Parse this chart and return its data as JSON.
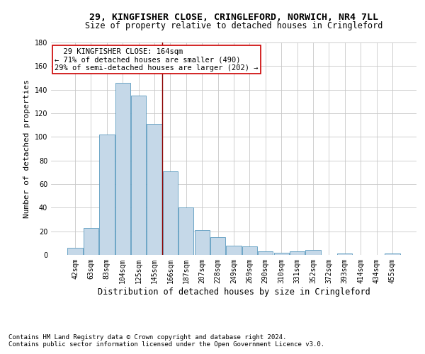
{
  "title1": "29, KINGFISHER CLOSE, CRINGLEFORD, NORWICH, NR4 7LL",
  "title2": "Size of property relative to detached houses in Cringleford",
  "xlabel": "Distribution of detached houses by size in Cringleford",
  "ylabel": "Number of detached properties",
  "categories": [
    "42sqm",
    "63sqm",
    "83sqm",
    "104sqm",
    "125sqm",
    "145sqm",
    "166sqm",
    "187sqm",
    "207sqm",
    "228sqm",
    "249sqm",
    "269sqm",
    "290sqm",
    "310sqm",
    "331sqm",
    "352sqm",
    "372sqm",
    "393sqm",
    "414sqm",
    "434sqm",
    "455sqm"
  ],
  "values": [
    6,
    23,
    102,
    146,
    135,
    111,
    71,
    40,
    21,
    15,
    8,
    7,
    3,
    2,
    3,
    4,
    0,
    1,
    0,
    0,
    1
  ],
  "bar_color": "#c5d8e8",
  "bar_edge_color": "#5a9abf",
  "vline_x": 5.5,
  "vline_color": "#8b0000",
  "annotation_text": "  29 KINGFISHER CLOSE: 164sqm\n← 71% of detached houses are smaller (490)\n29% of semi-detached houses are larger (202) →",
  "annotation_box_edge": "#cc0000",
  "ylim": [
    0,
    180
  ],
  "yticks": [
    0,
    20,
    40,
    60,
    80,
    100,
    120,
    140,
    160,
    180
  ],
  "grid_color": "#c8c8c8",
  "background_color": "#ffffff",
  "footer1": "Contains HM Land Registry data © Crown copyright and database right 2024.",
  "footer2": "Contains public sector information licensed under the Open Government Licence v3.0.",
  "title1_fontsize": 9.5,
  "title2_fontsize": 8.5,
  "xlabel_fontsize": 8.5,
  "ylabel_fontsize": 8,
  "tick_fontsize": 7,
  "annotation_fontsize": 7.5,
  "footer_fontsize": 6.5
}
